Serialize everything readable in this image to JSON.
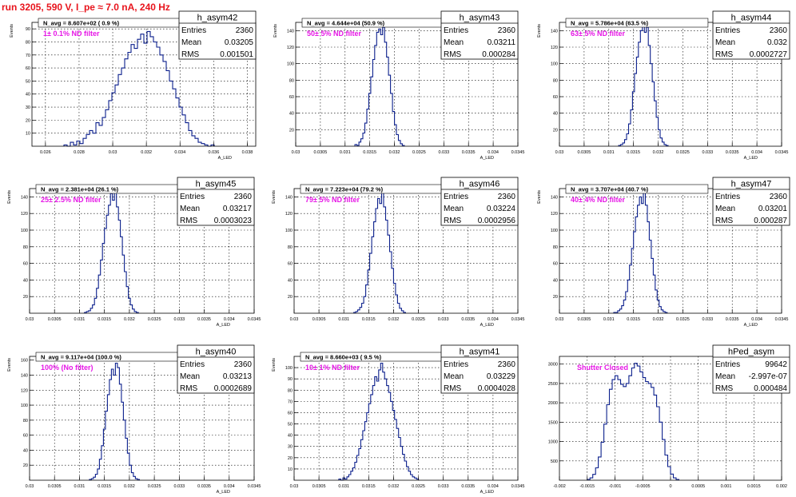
{
  "page": {
    "title": "run 3205,   590 V, I_pe ≈ 7.0 nA, 240 Hz"
  },
  "colors": {
    "histogram": "#0b1f8c",
    "filter_label": "#e616e6",
    "title": "#e8141c",
    "grid": "#000000"
  },
  "chart_data": [
    {
      "type": "bar",
      "histogram": "h_asym42",
      "stats": {
        "entries_label": "Entries",
        "entries": "2360",
        "mean_label": "Mean",
        "mean": "0.03205",
        "rms_label": "RMS",
        "rms": "0.001501"
      },
      "navg_text": "N_avg = 8.607e+02 ( 0.9 %)",
      "filter_label": "1± 0.1% ND filter",
      "ylabel": "Events",
      "xlabel": "A_LED",
      "xlim": [
        0.0252,
        0.0385
      ],
      "ylim": [
        0,
        95
      ],
      "xticks": [
        0.026,
        0.028,
        0.03,
        0.032,
        0.034,
        0.036,
        0.038
      ],
      "xtick_labels": [
        "0.026",
        "0.028",
        "0.03",
        "0.032",
        "0.034",
        "0.036",
        "0.038"
      ],
      "yticks": [
        10,
        20,
        30,
        40,
        50,
        60,
        70,
        80,
        90
      ],
      "ytick_labels": [
        "10",
        "20",
        "30",
        "40",
        "50",
        "60",
        "70",
        "80",
        "90"
      ],
      "bin_start": 0.0271,
      "bin_width": 0.00019,
      "values": [
        1,
        0,
        3,
        1,
        4,
        2,
        6,
        9,
        12,
        10,
        18,
        16,
        22,
        28,
        35,
        41,
        47,
        55,
        60,
        67,
        72,
        78,
        75,
        82,
        86,
        79,
        88,
        84,
        80,
        76,
        70,
        65,
        58,
        50,
        44,
        37,
        30,
        24,
        18,
        12,
        8,
        6,
        3,
        2,
        1,
        0,
        1
      ]
    },
    {
      "type": "bar",
      "histogram": "h_asym43",
      "stats": {
        "entries_label": "Entries",
        "entries": "2360",
        "mean_label": "Mean",
        "mean": "0.03211",
        "rms_label": "RMS",
        "rms": "0.000284"
      },
      "navg_text": "N_avg = 4.644e+04 (50.9 %)",
      "filter_label": "50± 5% ND filter",
      "ylabel": "Events",
      "xlabel": "A_LED",
      "xlim": [
        0.03,
        0.0345
      ],
      "ylim": [
        0,
        150
      ],
      "xticks": [
        0.03,
        0.0305,
        0.031,
        0.0315,
        0.032,
        0.0325,
        0.033,
        0.0335,
        0.034,
        0.0345
      ],
      "xtick_labels": [
        "0.03",
        "0.0305",
        "0.031",
        "0.0315",
        "0.032",
        "0.0325",
        "0.033",
        "0.0335",
        "0.034",
        "0.0345"
      ],
      "yticks": [
        20,
        40,
        60,
        80,
        100,
        120,
        140
      ],
      "ytick_labels": [
        "20",
        "40",
        "60",
        "80",
        "100",
        "120",
        "140"
      ],
      "bin_start": 0.0312,
      "bin_width": 4e-05,
      "values": [
        2,
        1,
        5,
        9,
        16,
        28,
        45,
        64,
        84,
        105,
        122,
        138,
        142,
        135,
        144,
        126,
        108,
        86,
        64,
        42,
        26,
        14,
        7,
        3,
        1
      ]
    },
    {
      "type": "bar",
      "histogram": "h_asym44",
      "stats": {
        "entries_label": "Entries",
        "entries": "2360",
        "mean_label": "Mean",
        "mean": "0.032",
        "rms_label": "RMS",
        "rms": "0.0002727"
      },
      "navg_text": "N_avg = 5.786e+04 (63.5 %)",
      "filter_label": "63± 5% ND filter",
      "ylabel": "Events",
      "xlabel": "A_LED",
      "xlim": [
        0.03,
        0.0345
      ],
      "ylim": [
        0,
        150
      ],
      "xticks": [
        0.03,
        0.0305,
        0.031,
        0.0315,
        0.032,
        0.0325,
        0.033,
        0.0335,
        0.034,
        0.0345
      ],
      "xtick_labels": [
        "0.03",
        "0.0305",
        "0.031",
        "0.0315",
        "0.032",
        "0.0325",
        "0.033",
        "0.0335",
        "0.034",
        "0.0345"
      ],
      "yticks": [
        20,
        40,
        60,
        80,
        100,
        120,
        140
      ],
      "ytick_labels": [
        "20",
        "40",
        "60",
        "80",
        "100",
        "120",
        "140"
      ],
      "bin_start": 0.0312,
      "bin_width": 4e-05,
      "values": [
        1,
        2,
        4,
        8,
        15,
        27,
        44,
        66,
        88,
        108,
        126,
        140,
        146,
        138,
        144,
        122,
        100,
        78,
        55,
        35,
        20,
        10,
        5,
        2,
        1
      ]
    },
    {
      "type": "bar",
      "histogram": "h_asym45",
      "stats": {
        "entries_label": "Entries",
        "entries": "2360",
        "mean_label": "Mean",
        "mean": "0.03217",
        "rms_label": "RMS",
        "rms": "0.0003023"
      },
      "navg_text": "N_avg = 2.381e+04 (26.1 %)",
      "filter_label": "25± 2.5% ND filter",
      "ylabel": "Events",
      "xlabel": "A_LED",
      "xlim": [
        0.03,
        0.0345
      ],
      "ylim": [
        0,
        150
      ],
      "xticks": [
        0.03,
        0.0305,
        0.031,
        0.0315,
        0.032,
        0.0325,
        0.033,
        0.0335,
        0.034,
        0.0345
      ],
      "xtick_labels": [
        "0.03",
        "0.0305",
        "0.031",
        "0.0315",
        "0.032",
        "0.0325",
        "0.033",
        "0.0335",
        "0.034",
        "0.0345"
      ],
      "yticks": [
        20,
        40,
        60,
        80,
        100,
        120,
        140
      ],
      "ytick_labels": [
        "20",
        "40",
        "60",
        "80",
        "100",
        "120",
        "140"
      ],
      "bin_start": 0.0311,
      "bin_width": 4e-05,
      "values": [
        1,
        2,
        3,
        6,
        10,
        18,
        30,
        46,
        64,
        84,
        102,
        118,
        130,
        144,
        136,
        146,
        128,
        112,
        92,
        70,
        50,
        32,
        18,
        10,
        5,
        2,
        1
      ]
    },
    {
      "type": "bar",
      "histogram": "h_asym46",
      "stats": {
        "entries_label": "Entries",
        "entries": "2360",
        "mean_label": "Mean",
        "mean": "0.03224",
        "rms_label": "RMS",
        "rms": "0.0002956"
      },
      "navg_text": "N_avg = 7.223e+04 (79.2 %)",
      "filter_label": "79± 5% ND filter",
      "ylabel": "Events",
      "xlabel": "A_LED",
      "xlim": [
        0.03,
        0.0345
      ],
      "ylim": [
        0,
        150
      ],
      "xticks": [
        0.03,
        0.0305,
        0.031,
        0.0315,
        0.032,
        0.0325,
        0.033,
        0.0335,
        0.034,
        0.0345
      ],
      "xtick_labels": [
        "0.03",
        "0.0305",
        "0.031",
        "0.0315",
        "0.032",
        "0.0325",
        "0.033",
        "0.0335",
        "0.034",
        "0.0345"
      ],
      "yticks": [
        20,
        40,
        60,
        80,
        100,
        120,
        140
      ],
      "ytick_labels": [
        "20",
        "40",
        "60",
        "80",
        "100",
        "120",
        "140"
      ],
      "bin_start": 0.0312,
      "bin_width": 4e-05,
      "values": [
        1,
        2,
        4,
        7,
        12,
        20,
        34,
        52,
        72,
        92,
        110,
        126,
        138,
        132,
        146,
        128,
        112,
        94,
        74,
        54,
        36,
        22,
        12,
        6,
        3,
        1
      ]
    },
    {
      "type": "bar",
      "histogram": "h_asym47",
      "stats": {
        "entries_label": "Entries",
        "entries": "2360",
        "mean_label": "Mean",
        "mean": "0.03201",
        "rms_label": "RMS",
        "rms": "0.000287"
      },
      "navg_text": "N_avg = 3.707e+04 (40.7 %)",
      "filter_label": "40± 4% ND filter",
      "ylabel": "Events",
      "xlabel": "A_LED",
      "xlim": [
        0.03,
        0.0345
      ],
      "ylim": [
        0,
        150
      ],
      "xticks": [
        0.03,
        0.0305,
        0.031,
        0.0315,
        0.032,
        0.0325,
        0.033,
        0.0335,
        0.034,
        0.0345
      ],
      "xtick_labels": [
        "0.03",
        "0.0305",
        "0.031",
        "0.0315",
        "0.032",
        "0.0325",
        "0.033",
        "0.0335",
        "0.034",
        "0.0345"
      ],
      "yticks": [
        20,
        40,
        60,
        80,
        100,
        120,
        140
      ],
      "ytick_labels": [
        "20",
        "40",
        "60",
        "80",
        "100",
        "120",
        "140"
      ],
      "bin_start": 0.0311,
      "bin_width": 4e-05,
      "values": [
        1,
        1,
        3,
        5,
        9,
        16,
        26,
        40,
        58,
        78,
        98,
        116,
        130,
        140,
        132,
        146,
        130,
        110,
        88,
        66,
        46,
        28,
        16,
        8,
        4,
        2,
        1
      ]
    },
    {
      "type": "bar",
      "histogram": "h_asym40",
      "stats": {
        "entries_label": "Entries",
        "entries": "2360",
        "mean_label": "Mean",
        "mean": "0.03213",
        "rms_label": "RMS",
        "rms": "0.0002689"
      },
      "navg_text": "N_avg = 9.117e+04 (100.0 %)",
      "filter_label": "100% (No filter)",
      "ylabel": "Events",
      "xlabel": "A_LED",
      "xlim": [
        0.03,
        0.0345
      ],
      "ylim": [
        0,
        165
      ],
      "xticks": [
        0.03,
        0.0305,
        0.031,
        0.0315,
        0.032,
        0.0325,
        0.033,
        0.0335,
        0.034,
        0.0345
      ],
      "xtick_labels": [
        "0.03",
        "0.0305",
        "0.031",
        "0.0315",
        "0.032",
        "0.0325",
        "0.033",
        "0.0335",
        "0.034",
        "0.0345"
      ],
      "yticks": [
        20,
        40,
        60,
        80,
        100,
        120,
        140,
        160
      ],
      "ytick_labels": [
        "20",
        "40",
        "60",
        "80",
        "100",
        "120",
        "140",
        "160"
      ],
      "bin_start": 0.0312,
      "bin_width": 4e-05,
      "values": [
        1,
        2,
        4,
        8,
        15,
        28,
        46,
        68,
        92,
        114,
        134,
        148,
        140,
        156,
        150,
        128,
        104,
        80,
        56,
        36,
        20,
        10,
        5,
        2,
        1
      ]
    },
    {
      "type": "bar",
      "histogram": "h_asym41",
      "stats": {
        "entries_label": "Entries",
        "entries": "2360",
        "mean_label": "Mean",
        "mean": "0.03229",
        "rms_label": "RMS",
        "rms": "0.0004028"
      },
      "navg_text": "N_avg = 8.660e+03 ( 9.5 %)",
      "filter_label": "10± 1% ND filter",
      "ylabel": "Events",
      "xlabel": "A_LED",
      "xlim": [
        0.03,
        0.0345
      ],
      "ylim": [
        0,
        110
      ],
      "xticks": [
        0.03,
        0.0305,
        0.031,
        0.0315,
        0.032,
        0.0325,
        0.033,
        0.0335,
        0.034,
        0.0345
      ],
      "xtick_labels": [
        "0.03",
        "0.0305",
        "0.031",
        "0.0315",
        "0.032",
        "0.0325",
        "0.033",
        "0.0335",
        "0.034",
        "0.0345"
      ],
      "yticks": [
        10,
        20,
        30,
        40,
        50,
        60,
        70,
        80,
        90,
        100
      ],
      "ytick_labels": [
        "10",
        "20",
        "30",
        "40",
        "50",
        "60",
        "70",
        "80",
        "90",
        "100"
      ],
      "bin_start": 0.0309,
      "bin_width": 4e-05,
      "values": [
        1,
        0,
        2,
        1,
        3,
        5,
        8,
        11,
        16,
        22,
        28,
        36,
        44,
        52,
        60,
        68,
        76,
        84,
        92,
        88,
        98,
        104,
        96,
        90,
        84,
        78,
        70,
        62,
        54,
        46,
        38,
        30,
        23,
        17,
        12,
        8,
        5,
        3,
        2,
        1
      ]
    },
    {
      "type": "bar",
      "histogram": "hPed_asym",
      "stats": {
        "entries_label": "Entries",
        "entries": "99642",
        "mean_label": "Mean",
        "mean": "-2.997e-07",
        "rms_label": "RMS",
        "rms": "0.000484"
      },
      "navg_text": "",
      "filter_label": "Shutter Closed",
      "ylabel": "",
      "xlabel": "",
      "xlim": [
        -0.002,
        0.002
      ],
      "ylim": [
        0,
        3200
      ],
      "xticks": [
        -0.002,
        -0.0015,
        -0.001,
        -0.0005,
        0,
        0.0005,
        0.001,
        0.0015,
        0.002
      ],
      "xtick_labels": [
        "-0.002",
        "-0.0015",
        "-0.001",
        "-0.0005",
        "0",
        "0.0005",
        "0.001",
        "0.0015",
        "0.002"
      ],
      "yticks": [
        500,
        1000,
        1500,
        2000,
        2500,
        3000
      ],
      "ytick_labels": [
        "500",
        "1000",
        "1500",
        "2000",
        "2500",
        "3000"
      ],
      "bin_start": -0.0015,
      "bin_width": 5e-05,
      "values": [
        20,
        60,
        150,
        320,
        600,
        980,
        1450,
        1950,
        2350,
        2600,
        2700,
        2600,
        2480,
        2420,
        2500,
        2700,
        2900,
        3020,
        2950,
        2800,
        2650,
        2550,
        2500,
        2400,
        2200,
        1900,
        1500,
        1050,
        650,
        350,
        160,
        60,
        20
      ]
    }
  ]
}
